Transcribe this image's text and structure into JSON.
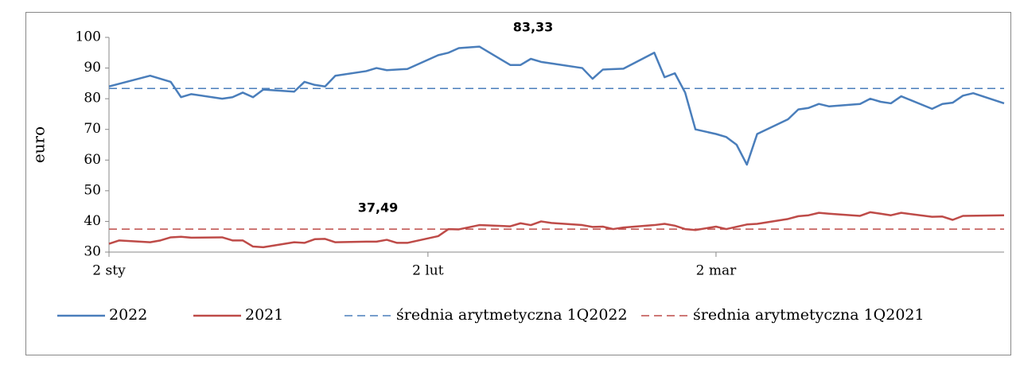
{
  "chart_data": {
    "type": "line",
    "y_label": "euro",
    "xlim": [
      2,
      89
    ],
    "xticks": [
      {
        "value": 2,
        "label": "2 sty"
      },
      {
        "value": 33,
        "label": "2 lut"
      },
      {
        "value": 61,
        "label": "2 mar"
      }
    ],
    "ylim": [
      30,
      100
    ],
    "yticks": [
      30,
      40,
      50,
      60,
      70,
      80,
      90,
      100
    ],
    "series": [
      {
        "name": "2022",
        "color": "#4a7ebb",
        "x": [
          2,
          6,
          7,
          8,
          9,
          10,
          13,
          14,
          15,
          16,
          17,
          20,
          21,
          22,
          23,
          24,
          27,
          28,
          29,
          31,
          34,
          35,
          36,
          38,
          41,
          42,
          43,
          44,
          45,
          48,
          49,
          50,
          52,
          55,
          56,
          57,
          58,
          59,
          61,
          62,
          63,
          64,
          65,
          68,
          69,
          70,
          71,
          72,
          75,
          76,
          77,
          78,
          79,
          82,
          83,
          84,
          85,
          86,
          89
        ],
        "values": [
          84,
          87.5,
          86.5,
          85.5,
          80.5,
          81.5,
          80,
          80.5,
          82,
          80.5,
          83,
          82.3,
          85.5,
          84.5,
          84,
          87.5,
          89,
          90,
          89.3,
          89.7,
          94.2,
          95,
          96.5,
          97,
          91,
          91,
          93,
          92,
          91.5,
          90,
          86.5,
          89.5,
          89.8,
          95,
          87,
          88.3,
          82,
          70,
          68.5,
          67.5,
          65,
          58.5,
          68.5,
          73.3,
          76.5,
          77,
          78.3,
          77.5,
          78.3,
          80,
          79,
          78.5,
          80.8,
          76.7,
          78.3,
          78.7,
          81,
          81.8,
          78.5
        ]
      },
      {
        "name": "2021",
        "color": "#be4b48",
        "x": [
          2,
          3,
          6,
          7,
          8,
          9,
          10,
          13,
          14,
          15,
          16,
          17,
          20,
          21,
          22,
          23,
          24,
          27,
          28,
          29,
          30,
          31,
          34,
          35,
          36,
          38,
          41,
          42,
          43,
          44,
          45,
          48,
          49,
          50,
          51,
          52,
          55,
          56,
          57,
          58,
          59,
          61,
          62,
          64,
          65,
          68,
          69,
          70,
          71,
          72,
          75,
          76,
          77,
          78,
          79,
          82,
          83,
          84,
          85,
          89
        ],
        "values": [
          32.7,
          33.8,
          33.2,
          33.8,
          34.8,
          35,
          34.7,
          34.8,
          33.8,
          33.8,
          31.8,
          31.6,
          33.2,
          33,
          34.2,
          34.3,
          33.2,
          33.4,
          33.4,
          34,
          33,
          33,
          35.2,
          37.5,
          37.4,
          38.8,
          38.4,
          39.4,
          38.8,
          40,
          39.5,
          38.8,
          38.2,
          38.3,
          37.5,
          38,
          38.8,
          39.2,
          38.6,
          37.5,
          37.2,
          38.3,
          37.5,
          39,
          39.2,
          40.8,
          41.7,
          42,
          42.8,
          42.5,
          41.8,
          43,
          42.5,
          42,
          42.8,
          41.5,
          41.6,
          40.5,
          41.8,
          42
        ]
      }
    ],
    "reference_lines": [
      {
        "name": "średnia arytmetyczna 1Q2022",
        "color": "#4a7ebb",
        "value": 83.33,
        "value_label": "83,33"
      },
      {
        "name": "średnia arytmetyczna 1Q2021",
        "color": "#be4b48",
        "value": 37.49,
        "value_label": "37,49"
      }
    ]
  }
}
